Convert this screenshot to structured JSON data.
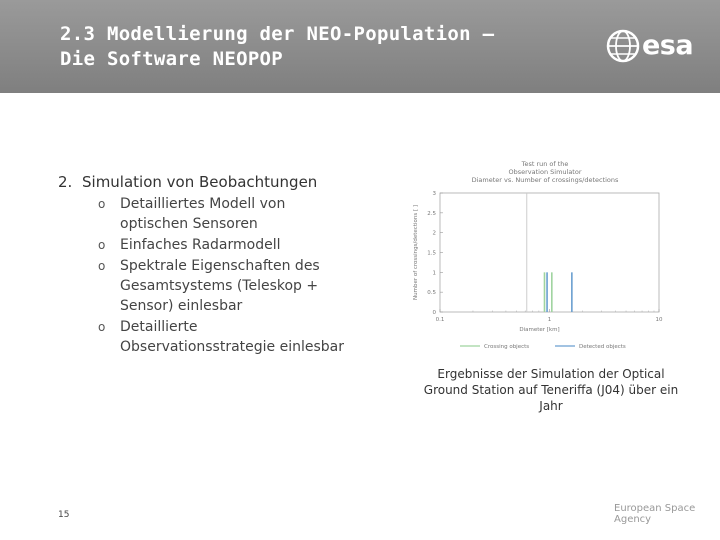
{
  "slide": {
    "title_line1": "2.3 Modellierung der NEO-Population –",
    "title_line2": "Die Software NEOPOP",
    "logo_text": "esa",
    "logo_icon": "esa-globe-icon",
    "page_number": "15",
    "footer_text": "European Space Agency"
  },
  "content": {
    "item_number": "2.",
    "item_text": "Simulation von Beobachtungen",
    "bullet_glyph": "o",
    "subitems": [
      {
        "lines": [
          "Detailliertes Modell von",
          "optischen Sensoren"
        ]
      },
      {
        "lines": [
          "Einfaches Radarmodell"
        ]
      },
      {
        "lines": [
          "Spektrale Eigenschaften des",
          "Gesamtsystems (Teleskop +",
          "Sensor) einlesbar"
        ]
      },
      {
        "lines": [
          "Detaillierte",
          "Observationsstrategie einlesbar"
        ]
      }
    ]
  },
  "figure": {
    "caption": "Ergebnisse der Simulation der Optical Ground Station auf Teneriffa (J04) über ein Jahr"
  },
  "chart_data": {
    "type": "bar",
    "title_lines": [
      "Test run of the",
      "Observation Simulator",
      "Diameter vs. Number of crossings/detections"
    ],
    "xlabel": "Diameter [km]",
    "ylabel": "Number of crossings/detections [ ]",
    "x_scale": "log",
    "xlim": [
      0.1,
      10
    ],
    "ylim": [
      0,
      3
    ],
    "x_ticks": [
      "0.1",
      "1",
      "10"
    ],
    "y_ticks": [
      "0",
      "0.5",
      "1",
      "1.5",
      "2",
      "2.5",
      "3"
    ],
    "series": [
      {
        "name": "Crossing objects",
        "color": "#9fd49f",
        "x": [
          0.9,
          1.05
        ],
        "values": [
          1,
          1
        ]
      },
      {
        "name": "Detected objects",
        "color": "#6a9fd0",
        "x": [
          0.95,
          1.6
        ],
        "values": [
          1,
          1
        ]
      }
    ],
    "vertical_line": {
      "x": 0.62,
      "color": "#cccccc"
    },
    "legend_position": "bottom",
    "grid": false
  }
}
